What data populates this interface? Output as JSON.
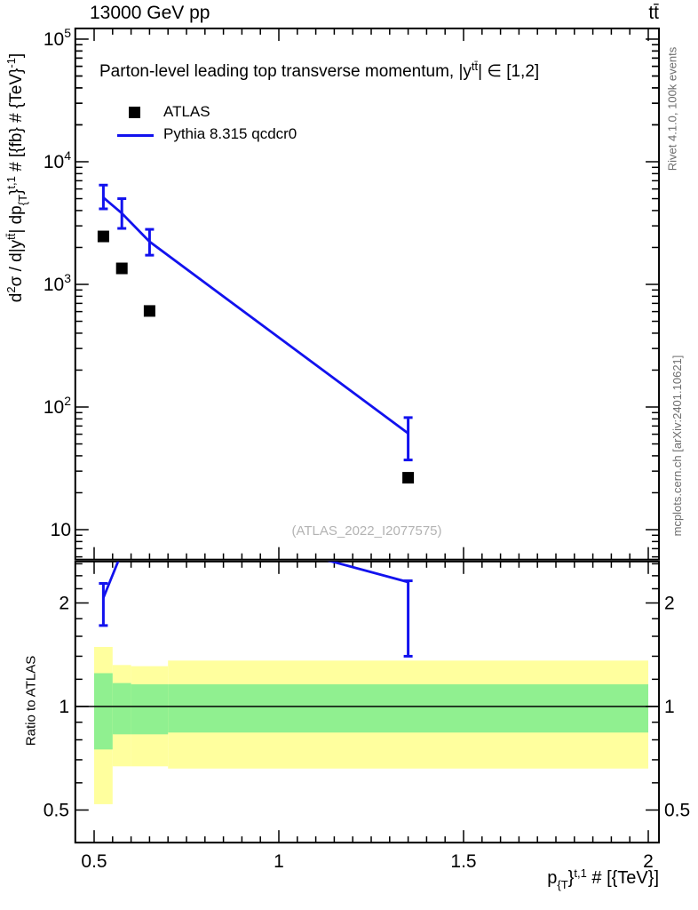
{
  "header": {
    "left": "13000 GeV pp",
    "right": "tt̄"
  },
  "title_parts": [
    [
      "n",
      "Parton-level leading top transverse momentum, |y"
    ],
    [
      "sup",
      "tt̄"
    ],
    [
      "n",
      "| ∈ [1,2]"
    ]
  ],
  "legend": {
    "items": [
      {
        "label": "ATLAS"
      },
      {
        "label": "Pythia 8.315 qcdcr0"
      }
    ]
  },
  "watermark": "(ATLAS_2022_I2077575)",
  "side_notes": {
    "top": "Rivet 4.1.0,  100k events",
    "bottom": "mcplots.cern.ch [arXiv:2401.10621]"
  },
  "axis_labels": {
    "ylabel_parts": [
      [
        "n",
        "d"
      ],
      [
        "sup",
        "2"
      ],
      [
        "n",
        "σ / d|y"
      ],
      [
        "sup",
        "tt̄"
      ],
      [
        "n",
        "| dp"
      ],
      [
        "sub",
        "{T"
      ],
      [
        "n",
        "}"
      ],
      [
        "sup",
        "t,1"
      ],
      [
        "n",
        " # [{fb} # {TeV}"
      ],
      [
        "sup",
        "-1"
      ],
      [
        "n",
        "]"
      ]
    ],
    "xlabel_parts": [
      [
        "n",
        "p"
      ],
      [
        "sub",
        "{T"
      ],
      [
        "n",
        "}"
      ],
      [
        "sup",
        "t,1"
      ],
      [
        "n",
        " # [{TeV}]"
      ]
    ],
    "ratio_ylabel": "Ratio to ATLAS"
  },
  "colors": {
    "mc_blue": "#1212ee",
    "band_yellow": "#ffff9e",
    "band_green": "#90f090",
    "data_black": "#000000",
    "watermark_gray": "#b3b3b3",
    "side_text_gray": "#6e6e6e"
  },
  "chart_data": {
    "type": "line",
    "title": "Parton-level leading top transverse momentum, |y^tt| ∈ [1,2]",
    "xlabel": "p_T^{t,1} [TeV]",
    "ylabel": "d2σ / d|y^tt| dp_T^{t,1} [fb/TeV]",
    "x_axis": {
      "range": [
        0.449,
        2.029
      ],
      "major_ticks": [
        0.5,
        1,
        1.5,
        2
      ],
      "major_tick_labels": [
        "0.5",
        "1",
        "1.5",
        "2"
      ],
      "minor_tick_step": 0.05
    },
    "y_main_axis": {
      "scale": "log10",
      "range": [
        5.7,
        122000
      ],
      "decade_exponents": [
        1,
        2,
        3,
        4,
        5
      ]
    },
    "y_ratio_axis": {
      "scale": "log2",
      "range": [
        0.402,
        2.64
      ],
      "major_ticks": [
        0.5,
        1,
        2
      ],
      "major_tick_labels": [
        "0.5",
        "1",
        "2"
      ],
      "minor_ticks": [
        0.6,
        0.7,
        0.8,
        0.9,
        1.2,
        1.4,
        1.6,
        1.8,
        2.2,
        2.4,
        2.6
      ]
    },
    "bin_edges": [
      0.5,
      0.55,
      0.6,
      0.7,
      2.0
    ],
    "x_points": [
      0.525,
      0.575,
      0.65,
      1.35
    ],
    "series": [
      {
        "name": "ATLAS",
        "type": "scatter",
        "marker": "filled-square",
        "values": [
          2460,
          1350,
          607,
          26.5
        ]
      },
      {
        "name": "Pythia 8.315 qcdcr0",
        "type": "line-with-errors",
        "values": [
          5100,
          3800,
          2230,
          61
        ],
        "err_lo": [
          4130,
          2860,
          1730,
          37
        ],
        "err_hi": [
          6450,
          5000,
          2810,
          82
        ]
      }
    ],
    "ratio": {
      "reference": "ATLAS",
      "values": [
        2.07,
        2.81,
        3.67,
        2.3
      ],
      "err_lo": [
        1.72,
        null,
        null,
        1.4
      ],
      "err_hi": [
        2.28,
        null,
        null,
        2.32
      ],
      "bands": [
        {
          "color_key": "band_yellow",
          "lo": [
            0.52,
            0.67,
            0.67,
            0.66
          ],
          "hi": [
            1.49,
            1.32,
            1.31,
            1.36
          ]
        },
        {
          "color_key": "band_green",
          "lo": [
            0.75,
            0.83,
            0.83,
            0.84
          ],
          "hi": [
            1.25,
            1.17,
            1.16,
            1.16
          ]
        }
      ]
    },
    "grid": false,
    "legend_position": "top-left-inside"
  }
}
